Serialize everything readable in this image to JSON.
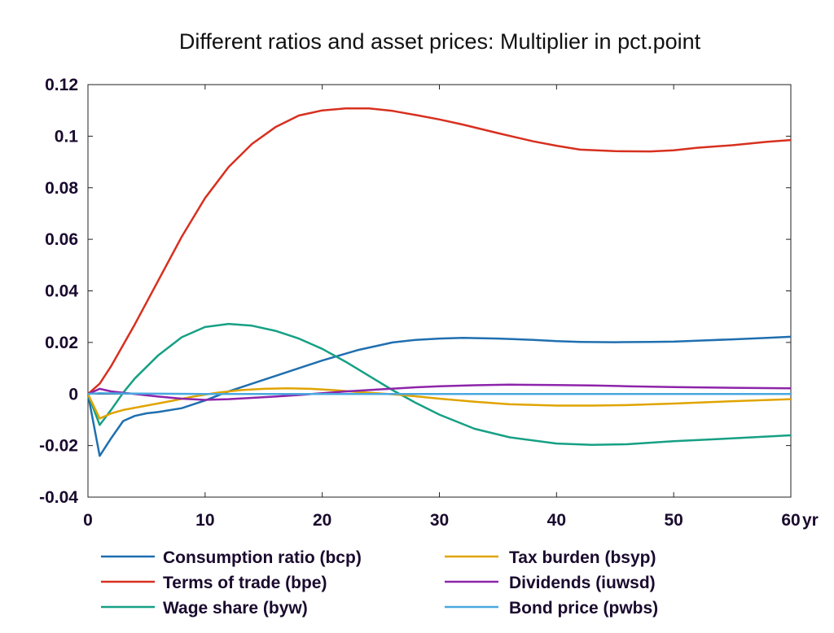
{
  "chart_data": {
    "type": "line",
    "title": "Different ratios and asset prices: Multiplier in pct.point",
    "xlabel": "",
    "ylabel": "",
    "x_unit_label": "yr",
    "xlim": [
      0,
      60
    ],
    "ylim": [
      -0.04,
      0.12
    ],
    "x_ticks": [
      0,
      10,
      20,
      30,
      40,
      50,
      60
    ],
    "x_tick_labels": [
      "0",
      "10",
      "20",
      "30",
      "40",
      "50",
      "60"
    ],
    "y_ticks": [
      -0.04,
      -0.02,
      0,
      0.02,
      0.04,
      0.06,
      0.08,
      0.1,
      0.12
    ],
    "y_tick_labels": [
      "-0.04",
      "-0.02",
      "0",
      "0.02",
      "0.04",
      "0.06",
      "0.08",
      "0.1",
      "0.12"
    ],
    "grid": false,
    "legend_position": "bottom",
    "zero_line": true,
    "series": [
      {
        "name": "Consumption ratio (bcp)",
        "color": "#1f6fb0",
        "x": [
          0,
          1,
          2,
          3,
          4,
          5,
          6,
          8,
          10,
          12,
          15,
          18,
          20,
          23,
          26,
          28,
          30,
          32,
          35,
          38,
          40,
          42,
          45,
          48,
          50,
          52,
          55,
          58,
          60
        ],
        "y": [
          0,
          -0.024,
          -0.017,
          -0.0105,
          -0.0085,
          -0.0075,
          -0.007,
          -0.0055,
          -0.0025,
          0.001,
          0.0055,
          0.01,
          0.013,
          0.017,
          0.02,
          0.021,
          0.0215,
          0.0218,
          0.0215,
          0.021,
          0.0205,
          0.0202,
          0.0201,
          0.0202,
          0.0203,
          0.0207,
          0.0212,
          0.0218,
          0.0222
        ]
      },
      {
        "name": "Terms of trade (bpe)",
        "color": "#d7301f",
        "x": [
          0,
          1,
          2,
          4,
          6,
          8,
          10,
          12,
          14,
          16,
          18,
          20,
          22,
          24,
          26,
          28,
          30,
          32,
          35,
          38,
          40,
          42,
          45,
          48,
          50,
          52,
          55,
          58,
          60
        ],
        "y": [
          0,
          0.004,
          0.011,
          0.027,
          0.044,
          0.061,
          0.076,
          0.088,
          0.097,
          0.1035,
          0.108,
          0.11,
          0.1108,
          0.1108,
          0.1098,
          0.1082,
          0.1065,
          0.1045,
          0.1012,
          0.098,
          0.0963,
          0.0948,
          0.0942,
          0.0941,
          0.0945,
          0.0955,
          0.0965,
          0.0978,
          0.0985
        ]
      },
      {
        "name": "Wage share (byw)",
        "color": "#16a085",
        "x": [
          0,
          1,
          2,
          3,
          4,
          6,
          8,
          10,
          12,
          14,
          16,
          18,
          20,
          22,
          24,
          26,
          28,
          30,
          33,
          36,
          40,
          43,
          46,
          50,
          55,
          60
        ],
        "y": [
          0,
          -0.012,
          -0.006,
          0.0005,
          0.006,
          0.015,
          0.022,
          0.026,
          0.0272,
          0.0265,
          0.0245,
          0.0215,
          0.0175,
          0.0125,
          0.007,
          0.0015,
          -0.0035,
          -0.008,
          -0.0135,
          -0.0168,
          -0.0192,
          -0.0197,
          -0.0195,
          -0.0183,
          -0.0172,
          -0.016
        ]
      },
      {
        "name": "Tax burden (bsyp)",
        "color": "#e0a400",
        "x": [
          0,
          1,
          2,
          3,
          5,
          7,
          9,
          11,
          13,
          15,
          17,
          19,
          21,
          23,
          25,
          27,
          30,
          33,
          36,
          40,
          43,
          46,
          50,
          55,
          60
        ],
        "y": [
          0,
          -0.0095,
          -0.0075,
          -0.0062,
          -0.0045,
          -0.0028,
          -0.001,
          0.0005,
          0.0015,
          0.002,
          0.0022,
          0.002,
          0.0015,
          0.0008,
          0.0002,
          -0.0005,
          -0.0018,
          -0.003,
          -0.004,
          -0.0045,
          -0.0045,
          -0.0043,
          -0.0037,
          -0.0028,
          -0.002
        ]
      },
      {
        "name": "Dividends (iuwsd)",
        "color": "#8e24aa",
        "x": [
          0,
          1,
          2,
          4,
          6,
          8,
          10,
          12,
          14,
          16,
          18,
          20,
          22,
          25,
          28,
          30,
          33,
          36,
          40,
          43,
          46,
          50,
          55,
          60
        ],
        "y": [
          0,
          0.002,
          0.001,
          0.0,
          -0.001,
          -0.0018,
          -0.0023,
          -0.002,
          -0.0015,
          -0.001,
          -0.0004,
          0.0003,
          0.001,
          0.0018,
          0.0026,
          0.003,
          0.0034,
          0.0036,
          0.0035,
          0.0033,
          0.003,
          0.0027,
          0.0024,
          0.0022
        ]
      },
      {
        "name": "Bond price (pwbs)",
        "color": "#4aa8e0",
        "x": [
          0,
          1,
          3,
          6,
          10,
          15,
          20,
          25,
          30,
          40,
          50,
          60
        ],
        "y": [
          0,
          0.0003,
          0.0002,
          0.0001,
          0.0,
          0.0,
          0.0,
          0.0,
          0.0,
          0.0,
          0.0,
          0.0
        ]
      }
    ]
  }
}
